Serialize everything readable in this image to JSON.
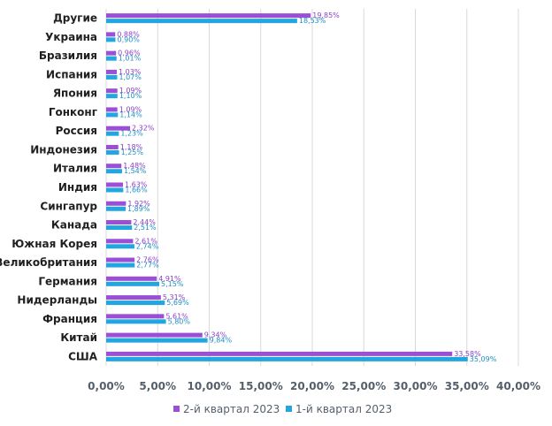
{
  "chart_data": {
    "type": "bar",
    "orientation": "horizontal",
    "categories": [
      "Другие",
      "Украина",
      "Бразилия",
      "Испания",
      "Япония",
      "Гонконг",
      "Россия",
      "Индонезия",
      "Италия",
      "Индия",
      "Сингапур",
      "Канада",
      "Южная Корея",
      "Великобритания",
      "Германия",
      "Нидерланды",
      "Франция",
      "Китай",
      "США"
    ],
    "series": [
      {
        "name": "2-й квартал 2023",
        "color": "#9b4fd6",
        "values": [
          19.85,
          0.88,
          0.96,
          1.03,
          1.09,
          1.09,
          2.32,
          1.18,
          1.48,
          1.63,
          1.92,
          2.44,
          2.61,
          2.76,
          4.91,
          5.31,
          5.61,
          9.34,
          33.58
        ],
        "labels": [
          "19,85%",
          "0,88%",
          "0,96%",
          "1,03%",
          "1,09%",
          "1,09%",
          "2,32%",
          "1,18%",
          "1,48%",
          "1,63%",
          "1,92%",
          "2,44%",
          "2,61%",
          "2,76%",
          "4,91%",
          "5,31%",
          "5,61%",
          "9,34%",
          "33,58%"
        ]
      },
      {
        "name": "1-й квартал 2023",
        "color": "#22a6e0",
        "values": [
          18.53,
          0.9,
          1.01,
          1.07,
          1.1,
          1.14,
          1.23,
          1.25,
          1.54,
          1.66,
          1.89,
          2.51,
          2.74,
          2.77,
          5.15,
          5.69,
          5.8,
          9.84,
          35.09
        ],
        "labels": [
          "18,53%",
          "0,90%",
          "1,01%",
          "1,07%",
          "1,10%",
          "1,14%",
          "1,23%",
          "1,25%",
          "1,54%",
          "1,66%",
          "1,89%",
          "2,51%",
          "2,74%",
          "2,77%",
          "5,15%",
          "5,69%",
          "5,80%",
          "9,84%",
          "35,09%"
        ]
      }
    ],
    "xlim": [
      0,
      40
    ],
    "xticks": [
      "0,00%",
      "5,00%",
      "10,00%",
      "15,00%",
      "20,00%",
      "25,00%",
      "30,00%",
      "35,00%",
      "40,00%"
    ],
    "grid": true,
    "legend_position": "bottom",
    "title": "",
    "xlabel": "",
    "ylabel": ""
  }
}
